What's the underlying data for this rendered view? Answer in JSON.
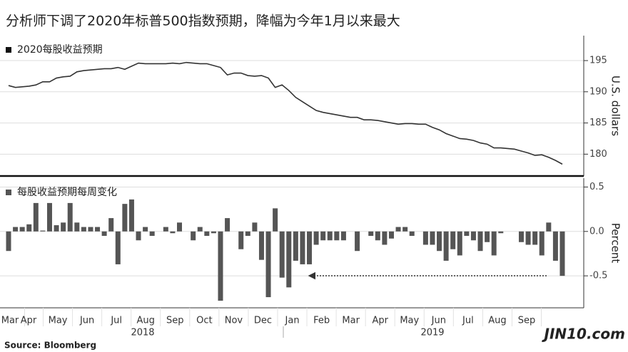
{
  "title": "分析师下调了2020年标普500指数预期，降幅为今年1月以来最大",
  "source": "Source: Bloomberg",
  "watermark": "JIN10.com",
  "x_axis": {
    "categories": [
      "Mar",
      "Apr",
      "May",
      "Jun",
      "Jul",
      "Aug",
      "Sep",
      "Oct",
      "Nov",
      "Dec",
      "Jan",
      "Feb",
      "Mar",
      "Apr",
      "May",
      "Jun",
      "Jul",
      "Aug",
      "Sep"
    ],
    "groups": [
      "2018",
      "2019"
    ]
  },
  "chart_data": [
    {
      "type": "line",
      "y_label": "U.S. dollars",
      "ylim": [
        176.5,
        199
      ],
      "yticks": [
        180,
        185,
        190,
        195
      ],
      "grid": true,
      "series": [
        {
          "name": "2020每股收益预期",
          "color": "#333333",
          "values": [
            191.0,
            190.7,
            190.8,
            190.9,
            191.1,
            191.6,
            191.6,
            192.2,
            192.4,
            192.5,
            193.2,
            193.4,
            193.5,
            193.6,
            193.7,
            193.7,
            193.9,
            193.6,
            194.1,
            194.6,
            194.5,
            194.5,
            194.5,
            194.5,
            194.6,
            194.5,
            194.7,
            194.6,
            194.5,
            194.5,
            194.2,
            193.9,
            192.7,
            193.0,
            193.0,
            192.6,
            192.5,
            192.6,
            192.2,
            190.7,
            191.1,
            190.2,
            189.1,
            188.4,
            187.7,
            187.0,
            186.7,
            186.5,
            186.3,
            186.1,
            185.9,
            185.9,
            185.5,
            185.5,
            185.4,
            185.2,
            185.0,
            184.8,
            184.9,
            184.9,
            184.8,
            184.8,
            184.3,
            183.9,
            183.3,
            182.9,
            182.5,
            182.4,
            182.2,
            181.8,
            181.6,
            181.0,
            181.0,
            180.9,
            180.8,
            180.5,
            180.2,
            179.8,
            179.9,
            179.5,
            179.0,
            178.4
          ]
        }
      ]
    },
    {
      "type": "bar",
      "y_label": "Percent",
      "ylim": [
        -0.86,
        0.6
      ],
      "yticks": [
        0.5,
        {
          "value": 0,
          "label": "0.0"
        },
        -0.5
      ],
      "grid": true,
      "series": [
        {
          "name": "每股收益预期每周变化",
          "color": "#555555",
          "values": [
            -0.22,
            0.05,
            0.05,
            0.08,
            0.32,
            0.01,
            0.32,
            0.07,
            0.1,
            0.32,
            0.1,
            0.05,
            0.05,
            0.05,
            -0.05,
            0.15,
            -0.37,
            0.31,
            0.36,
            -0.1,
            0.05,
            -0.05,
            0.0,
            0.05,
            -0.02,
            0.1,
            0.0,
            -0.1,
            0.05,
            -0.05,
            -0.02,
            -0.78,
            0.15,
            0.0,
            -0.2,
            -0.05,
            0.1,
            -0.32,
            -0.74,
            0.26,
            -0.52,
            -0.63,
            -0.33,
            -0.37,
            -0.37,
            -0.15,
            -0.1,
            -0.1,
            -0.1,
            -0.1,
            0.0,
            -0.22,
            0.0,
            -0.05,
            -0.1,
            -0.15,
            -0.08,
            0.05,
            0.05,
            -0.05,
            0.0,
            -0.15,
            -0.15,
            -0.22,
            -0.33,
            -0.2,
            -0.27,
            -0.05,
            -0.1,
            -0.22,
            -0.12,
            -0.27,
            -0.02,
            0.0,
            0.0,
            -0.12,
            -0.15,
            -0.15,
            -0.27,
            0.1,
            -0.33,
            -0.5
          ]
        }
      ]
    }
  ]
}
